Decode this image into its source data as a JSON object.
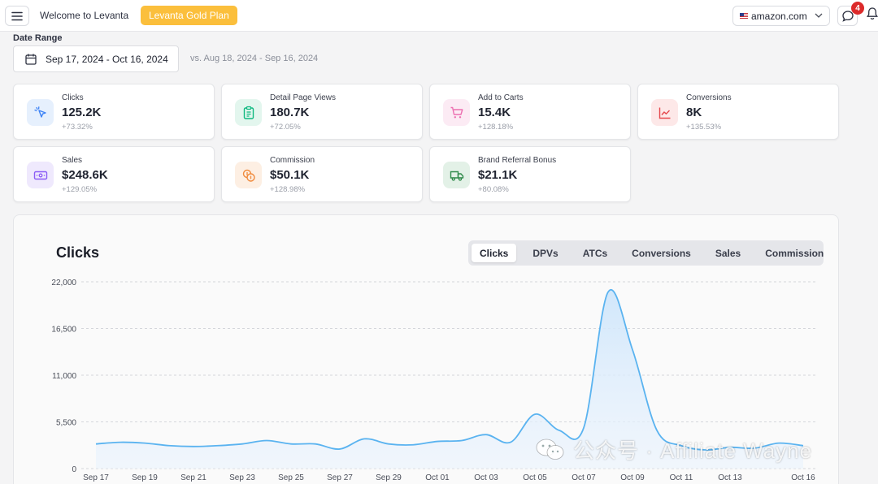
{
  "topbar": {
    "welcome": "Welcome to Levanta",
    "plan_badge": "Levanta Gold Plan",
    "marketplace": "amazon.com",
    "notification_count": "4"
  },
  "date_range": {
    "label": "Date Range",
    "value": "Sep 17, 2024 - Oct 16, 2024",
    "compare": "vs. Aug 18, 2024 - Sep 16, 2024"
  },
  "metrics": [
    {
      "label": "Clicks",
      "value": "125.2K",
      "change": "+73.32%",
      "icon": "cursor-click-icon",
      "color": "#3b82f6",
      "bg": "#e6f0fd"
    },
    {
      "label": "Detail Page Views",
      "value": "180.7K",
      "change": "+72.05%",
      "icon": "clipboard-icon",
      "color": "#10b981",
      "bg": "#e3f6ee"
    },
    {
      "label": "Add to Carts",
      "value": "15.4K",
      "change": "+128.18%",
      "icon": "cart-icon",
      "color": "#ec6fb0",
      "bg": "#fcebf4"
    },
    {
      "label": "Conversions",
      "value": "8K",
      "change": "+135.53%",
      "icon": "trend-chart-icon",
      "color": "#e5484d",
      "bg": "#fde8e8"
    },
    {
      "label": "Sales",
      "value": "$248.6K",
      "change": "+129.05%",
      "icon": "cash-icon",
      "color": "#8b5cf6",
      "bg": "#efe9fd"
    },
    {
      "label": "Commission",
      "value": "$50.1K",
      "change": "+128.98%",
      "icon": "coins-icon",
      "color": "#f08a3c",
      "bg": "#fdefe3"
    },
    {
      "label": "Brand Referral Bonus",
      "value": "$21.1K",
      "change": "+80.08%",
      "icon": "truck-icon",
      "color": "#2f8a4a",
      "bg": "#e3f1e7"
    }
  ],
  "chart": {
    "title": "Clicks",
    "tabs": [
      "Clicks",
      "DPVs",
      "ATCs",
      "Conversions",
      "Sales",
      "Commission"
    ],
    "active_tab": "Clicks"
  },
  "chart_data": {
    "type": "area",
    "title": "Clicks",
    "x": [
      "Sep 17",
      "Sep 18",
      "Sep 19",
      "Sep 20",
      "Sep 21",
      "Sep 22",
      "Sep 23",
      "Sep 24",
      "Sep 25",
      "Sep 26",
      "Sep 27",
      "Sep 28",
      "Sep 29",
      "Sep 30",
      "Oct 01",
      "Oct 02",
      "Oct 03",
      "Oct 04",
      "Oct 05",
      "Oct 06",
      "Oct 07",
      "Oct 08",
      "Oct 09",
      "Oct 10",
      "Oct 11",
      "Oct 12",
      "Oct 13",
      "Oct 14",
      "Oct 15",
      "Oct 16"
    ],
    "x_tick_labels": [
      "Sep 17",
      "Sep 19",
      "Sep 21",
      "Sep 23",
      "Sep 25",
      "Sep 27",
      "Sep 29",
      "Oct 01",
      "Oct 03",
      "Oct 05",
      "Oct 07",
      "Oct 09",
      "Oct 11",
      "Oct 13",
      "Oct 16"
    ],
    "series": [
      {
        "values": [
          2900,
          3100,
          3000,
          2700,
          2600,
          2700,
          2900,
          3300,
          2900,
          2900,
          2300,
          3500,
          2900,
          2800,
          3200,
          3300,
          4000,
          3100,
          6400,
          4500,
          4800,
          20800,
          14000,
          4500,
          2700,
          2200,
          2500,
          2400,
          3000,
          2700
        ]
      }
    ],
    "yticks": [
      0,
      5500,
      11000,
      16500,
      22000
    ],
    "ytick_labels": [
      "0",
      "5,500",
      "11,000",
      "16,500",
      "22,000"
    ],
    "ylim": [
      0,
      22000
    ],
    "grid": true,
    "legend": "none",
    "line_color": "#5ab3f0"
  },
  "watermark": "公众号 · Affiliate Wayne"
}
